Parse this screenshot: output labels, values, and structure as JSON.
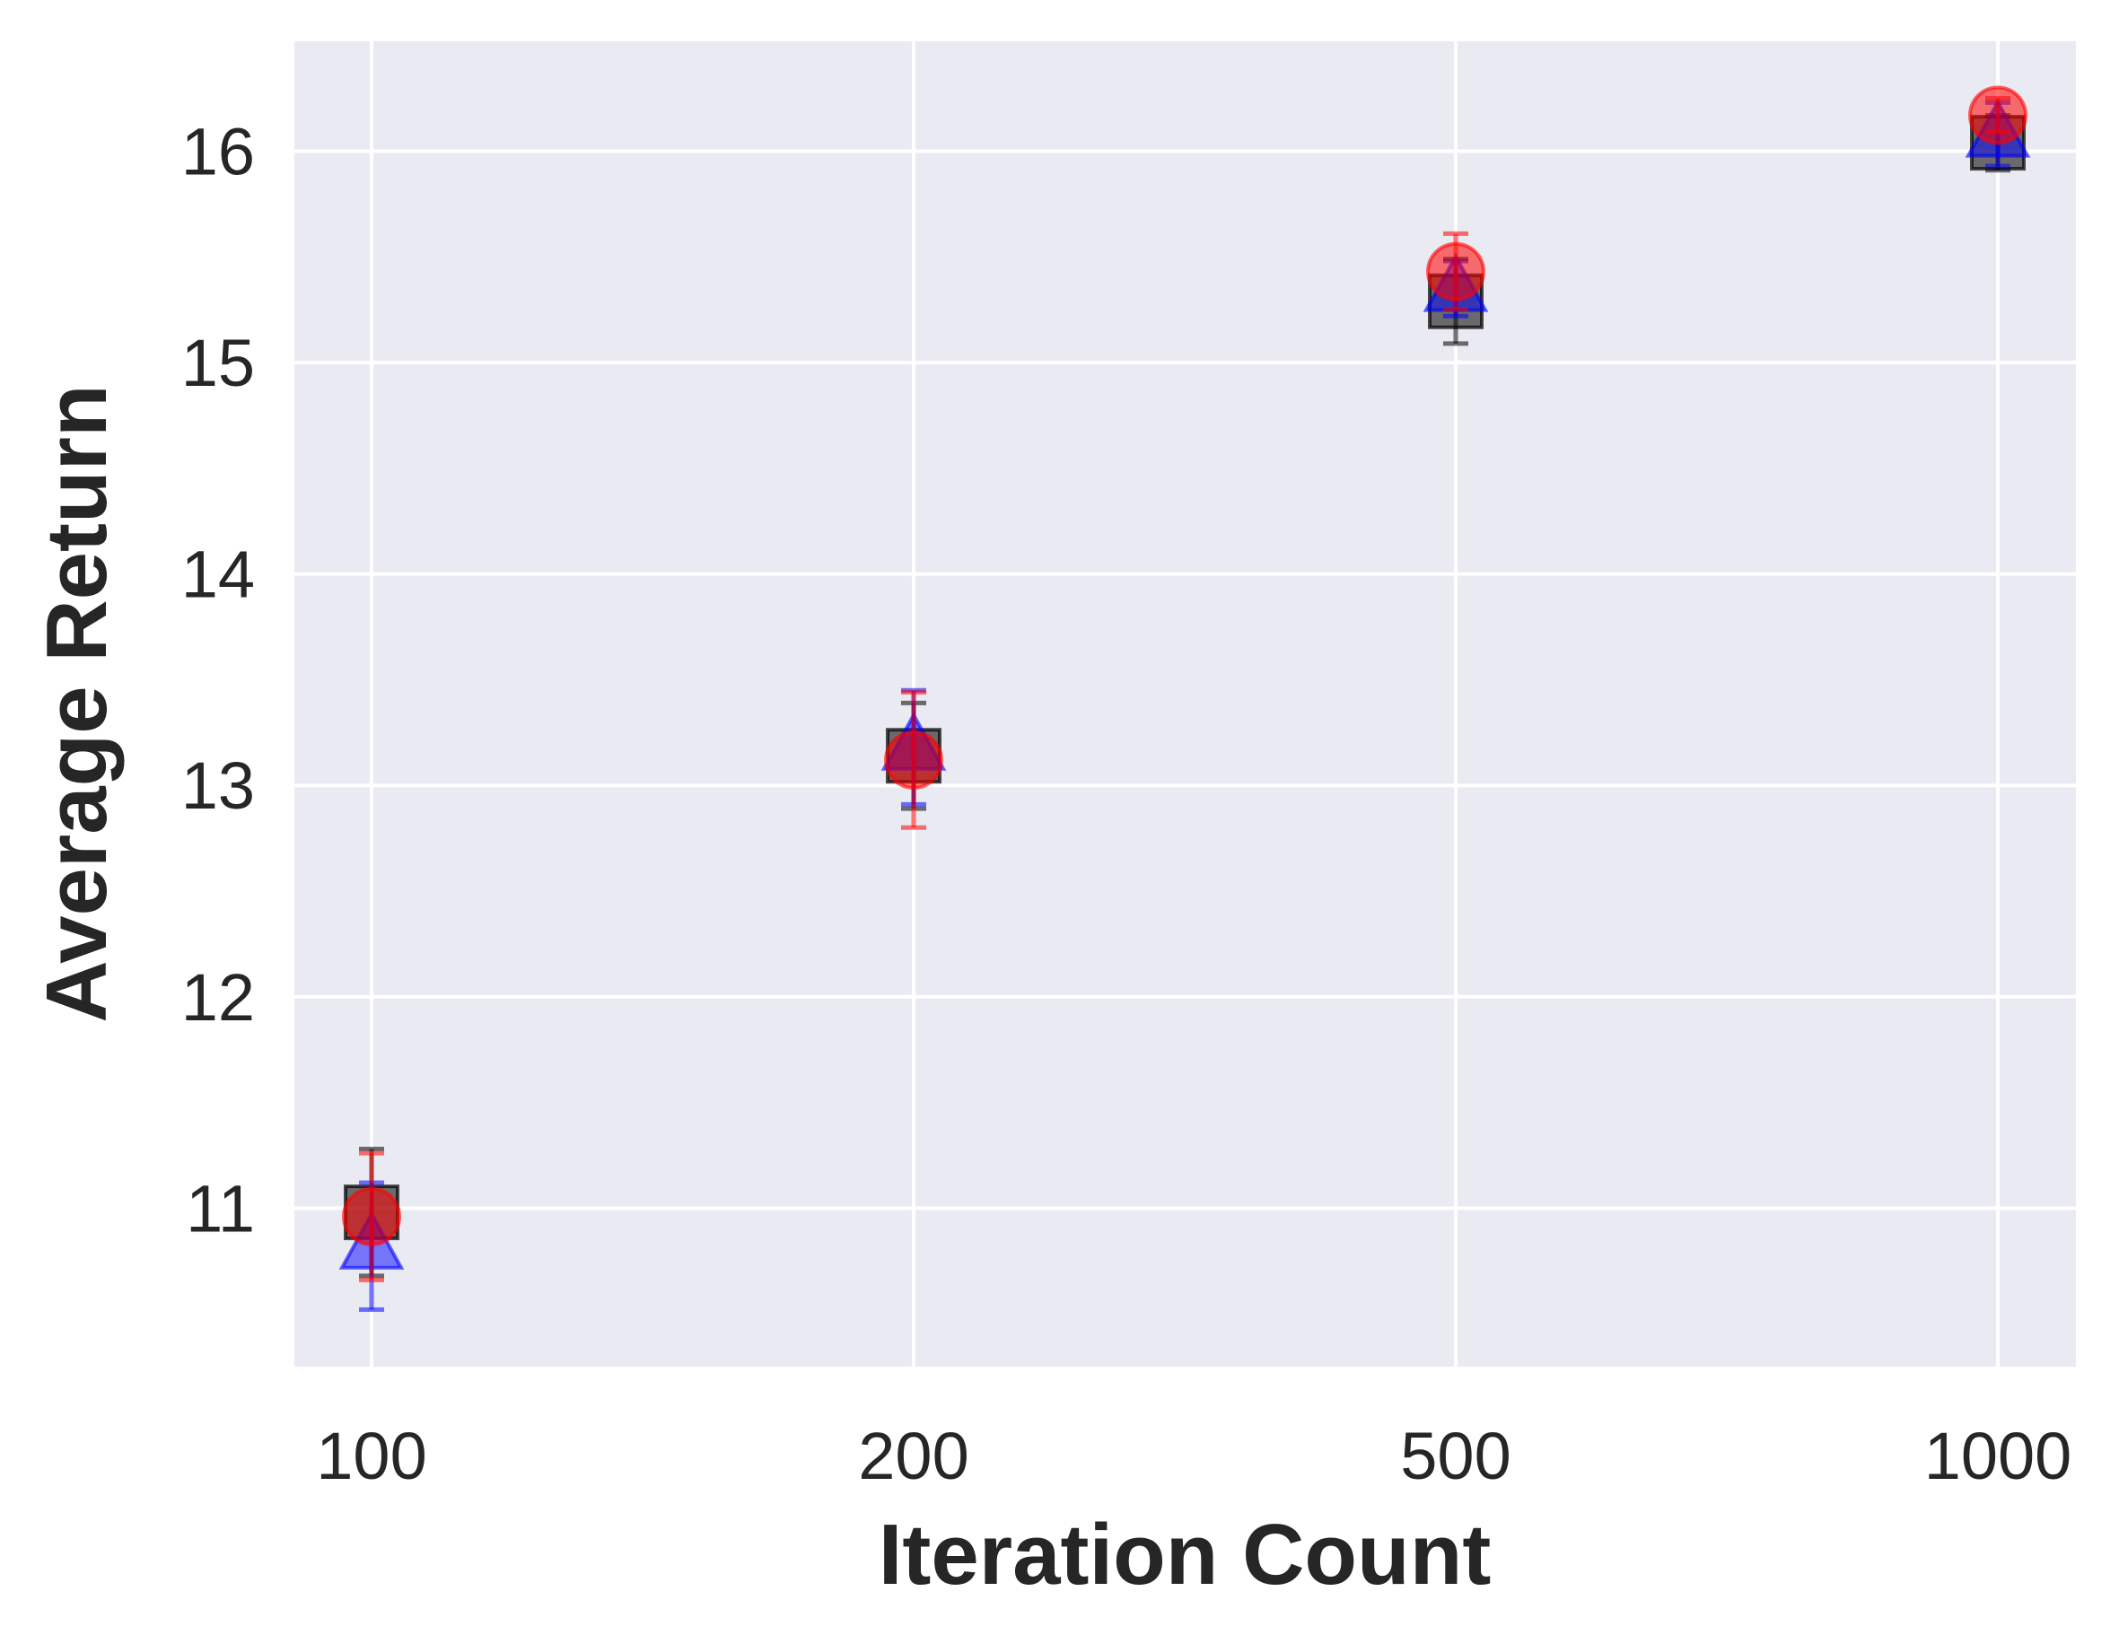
{
  "chart_data": {
    "type": "scatter",
    "xlabel": "Iteration Count",
    "ylabel": "Average Return",
    "categories": [
      "100",
      "200",
      "500",
      "1000"
    ],
    "ylim": [
      10.25,
      16.52
    ],
    "yticks": [
      "11",
      "12",
      "13",
      "14",
      "15",
      "16"
    ],
    "grid": true,
    "background": "#EAEAF2",
    "series": [
      {
        "marker": "square",
        "color": "#000000",
        "values": [
          10.98,
          13.14,
          15.29,
          16.04
        ],
        "errors": [
          0.3,
          0.25,
          0.2,
          0.13
        ]
      },
      {
        "marker": "triangle",
        "color": "#0000FF",
        "values": [
          10.82,
          13.18,
          15.35,
          16.08
        ],
        "errors": [
          0.3,
          0.27,
          0.13,
          0.15
        ]
      },
      {
        "marker": "circle",
        "color": "#FF0000",
        "values": [
          10.96,
          13.12,
          15.43,
          16.17
        ],
        "errors": [
          0.3,
          0.32,
          0.18,
          0.08
        ]
      }
    ]
  }
}
